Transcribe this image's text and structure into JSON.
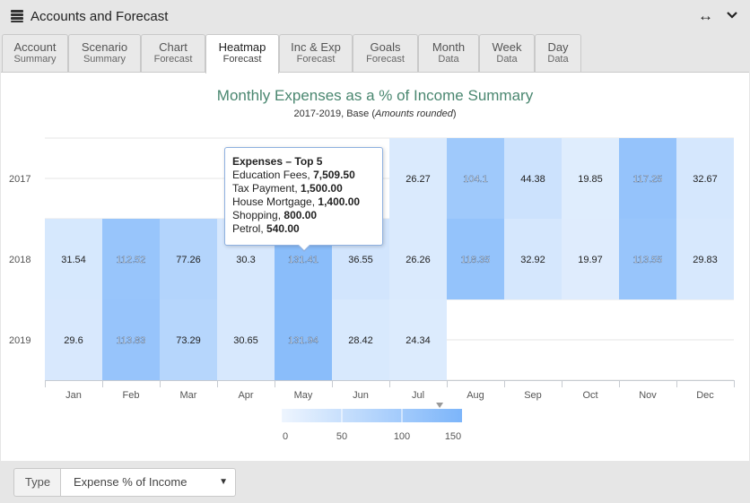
{
  "window": {
    "title": "Accounts and Forecast",
    "app_icon": "database-stack-icon",
    "expand_icon": "horizontal-arrows-icon",
    "collapse_icon": "chevron-down-icon"
  },
  "tabs": [
    {
      "line1": "Account",
      "line2": "Summary",
      "active": false
    },
    {
      "line1": "Scenario",
      "line2": "Summary",
      "active": false
    },
    {
      "line1": "Chart",
      "line2": "Forecast",
      "active": false
    },
    {
      "line1": "Heatmap",
      "line2": "Forecast",
      "active": true
    },
    {
      "line1": "Inc & Exp",
      "line2": "Forecast",
      "active": false
    },
    {
      "line1": "Goals",
      "line2": "Forecast",
      "active": false
    },
    {
      "line1": "Month",
      "line2": "Data",
      "active": false
    },
    {
      "line1": "Week",
      "line2": "Data",
      "active": false
    },
    {
      "line1": "Day",
      "line2": "Data",
      "active": false
    }
  ],
  "chart_data": {
    "type": "heatmap",
    "title": "Monthly Expenses as a % of Income Summary",
    "subtitle_prefix": "2017-2019, Base (",
    "subtitle_italic": "Amounts rounded",
    "subtitle_suffix": ")",
    "x_categories": [
      "Jan",
      "Feb",
      "Mar",
      "Apr",
      "May",
      "Jun",
      "Jul",
      "Aug",
      "Sep",
      "Oct",
      "Nov",
      "Dec"
    ],
    "y_categories": [
      "2017",
      "2018",
      "2019"
    ],
    "values": [
      [
        null,
        null,
        null,
        null,
        null,
        null,
        26.27,
        104.1,
        44.38,
        19.85,
        117.25,
        32.67
      ],
      [
        31.54,
        112.52,
        77.26,
        30.3,
        131.41,
        36.55,
        26.26,
        118.35,
        32.92,
        19.97,
        113.55,
        29.83
      ],
      [
        29.6,
        113.83,
        73.29,
        30.65,
        131.94,
        28.42,
        24.34,
        null,
        null,
        null,
        null,
        null
      ]
    ],
    "color_axis": {
      "min": 0,
      "max": 150,
      "ticks": [
        0,
        50,
        100,
        150
      ],
      "min_color": "#eef5fe",
      "max_color": "#7cb5fa"
    },
    "color_axis_marker_value": 131.41,
    "tooltip": {
      "title": "Expenses – Top 5",
      "items": [
        {
          "label": "Education Fees",
          "value": "7,509.50"
        },
        {
          "label": "Tax Payment",
          "value": "1,500.00"
        },
        {
          "label": "House Mortgage",
          "value": "1,400.00"
        },
        {
          "label": "Shopping",
          "value": "800.00"
        },
        {
          "label": "Petrol",
          "value": "540.00"
        }
      ]
    }
  },
  "controls": {
    "type_label": "Type",
    "type_value": "Expense % of Income"
  }
}
